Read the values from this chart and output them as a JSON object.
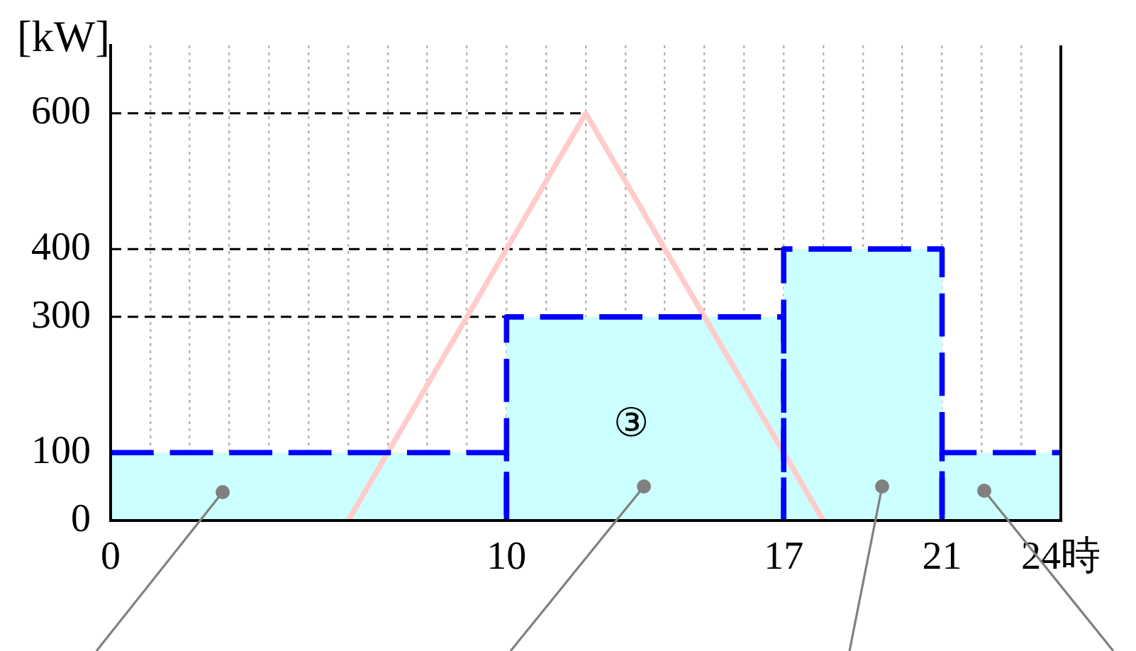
{
  "chart_data": {
    "type": "line",
    "ylabel": "[kW]",
    "series": [
      {
        "type": "area",
        "color": "#ccffff",
        "x": [
          0,
          10,
          10,
          17,
          17,
          21,
          21,
          24
        ],
        "values": [
          100,
          100,
          300,
          300,
          400,
          400,
          100,
          100
        ]
      },
      {
        "color": "#0000ff",
        "line_style": "dashed",
        "x": [
          0,
          10,
          10
        ],
        "values": [
          100,
          100,
          0
        ]
      },
      {
        "color": "#0000ff",
        "line_style": "dashed",
        "x": [
          10,
          10,
          17,
          17
        ],
        "values": [
          0,
          300,
          300,
          0
        ]
      },
      {
        "color": "#0000ff",
        "line_style": "dashed",
        "x": [
          17,
          17,
          21,
          21
        ],
        "values": [
          0,
          400,
          400,
          0
        ]
      },
      {
        "color": "#0000ff",
        "line_style": "dashed",
        "x": [
          21,
          21,
          24
        ],
        "values": [
          0,
          100,
          100
        ]
      },
      {
        "color": "#ffcccc",
        "x": [
          6,
          12,
          18
        ],
        "values": [
          0,
          600,
          0
        ]
      }
    ],
    "xlim": [
      0,
      24
    ],
    "xticks": [
      0,
      {
        "value": 1,
        "label": null
      },
      {
        "value": 2,
        "label": null
      },
      {
        "value": 3,
        "label": null
      },
      {
        "value": 4,
        "label": null
      },
      {
        "value": 5,
        "label": null
      },
      {
        "value": 6,
        "label": null
      },
      {
        "value": 7,
        "label": null
      },
      {
        "value": 8,
        "label": null
      },
      {
        "value": 9,
        "label": null
      },
      10,
      {
        "value": 11,
        "label": null
      },
      {
        "value": 12,
        "label": null
      },
      {
        "value": 13,
        "label": null
      },
      {
        "value": 14,
        "label": null
      },
      {
        "value": 15,
        "label": null
      },
      {
        "value": 16,
        "label": null
      },
      17,
      {
        "value": 18,
        "label": null
      },
      {
        "value": 19,
        "label": null
      },
      {
        "value": 20,
        "label": null
      },
      21,
      {
        "value": 22,
        "label": null
      },
      {
        "value": 23,
        "label": null
      },
      {
        "value": 24,
        "label": "24時"
      }
    ],
    "ylim": [
      0,
      700
    ],
    "yticks": [
      0,
      100,
      300,
      400,
      600
    ],
    "grid": "x",
    "marker": "none",
    "ref_lines": [
      {
        "axis": "y",
        "value": 600,
        "color": "#000000",
        "line_style": "dashed"
      },
      {
        "axis": "y",
        "value": 400,
        "color": "#000000",
        "line_style": "dashed"
      },
      {
        "axis": "y",
        "value": 300,
        "color": "#000000",
        "line_style": "dashed"
      }
    ],
    "annotations": [
      "③"
    ]
  }
}
